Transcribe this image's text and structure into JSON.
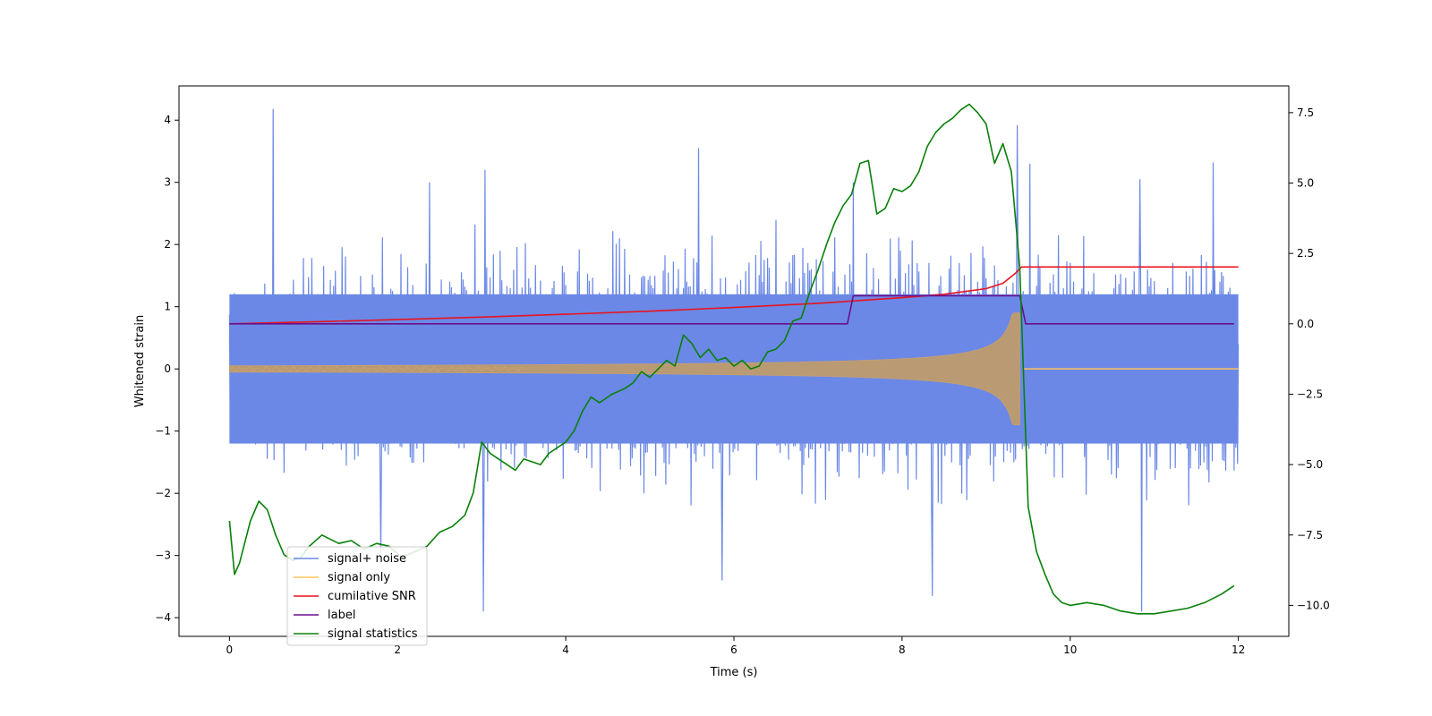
{
  "chart_data": {
    "type": "line",
    "title": "",
    "xlabel": "Time (s)",
    "ylabel": "Whitened strain",
    "ylabel_right": "",
    "xlim": [
      -0.6,
      12.6
    ],
    "ylim": [
      -4.3,
      4.55
    ],
    "ylim_right": [
      -11.1,
      8.45
    ],
    "x_ticks": [
      0,
      2,
      4,
      6,
      8,
      10,
      12
    ],
    "x_tick_labels": [
      "0",
      "2",
      "4",
      "6",
      "8",
      "10",
      "12"
    ],
    "y_ticks": [
      -4,
      -3,
      -2,
      -1,
      0,
      1,
      2,
      3,
      4
    ],
    "y_tick_labels": [
      "−4",
      "−3",
      "−2",
      "−1",
      "0",
      "1",
      "2",
      "3",
      "4"
    ],
    "y_right_ticks": [
      -10,
      -7.5,
      -5,
      -2.5,
      0,
      2.5,
      5,
      7.5
    ],
    "y_right_tick_labels": [
      "−10.0",
      "−7.5",
      "−5.0",
      "−2.5",
      "0.0",
      "2.5",
      "5.0",
      "7.5"
    ],
    "legend_position": "lower-left",
    "series": [
      {
        "name": "signal+ noise",
        "color": "#6b88e6",
        "axis": "left",
        "style": "noise band",
        "sample_rate_hz": 100,
        "x_range": [
          0,
          12
        ],
        "typical_range": [
          -1.2,
          1.2
        ],
        "envelope": [
          {
            "x": 0,
            "upper": 1.5,
            "lower": -1.6
          },
          {
            "x": 2,
            "upper": 2.4,
            "lower": -2.0
          },
          {
            "x": 4,
            "upper": 2.5,
            "lower": -2.2
          },
          {
            "x": 6,
            "upper": 2.6,
            "lower": -2.3
          },
          {
            "x": 8,
            "upper": 2.6,
            "lower": -2.4
          },
          {
            "x": 9.4,
            "upper": 2.4,
            "lower": -2.3
          },
          {
            "x": 12,
            "upper": 2.3,
            "lower": -2.2
          }
        ],
        "spikes": [
          {
            "x": 0.52,
            "y": 4.18
          },
          {
            "x": 3.02,
            "y": -3.9
          },
          {
            "x": 3.04,
            "y": 3.2
          },
          {
            "x": 5.58,
            "y": 3.55
          },
          {
            "x": 9.37,
            "y": 3.92
          },
          {
            "x": 9.52,
            "y": 3.3
          },
          {
            "x": 10.85,
            "y": -3.9
          },
          {
            "x": 10.83,
            "y": 3.05
          },
          {
            "x": 11.7,
            "y": 3.32
          },
          {
            "x": 8.36,
            "y": -3.65
          },
          {
            "x": 5.86,
            "y": -3.4
          },
          {
            "x": 1.8,
            "y": -3.0
          },
          {
            "x": 7.42,
            "y": 3.0
          },
          {
            "x": 2.38,
            "y": 3.0
          }
        ]
      },
      {
        "name": "signal only",
        "color": "#ffc55c",
        "axis": "left",
        "style": "chirp",
        "chirp": {
          "start": 0,
          "end": 9.4,
          "start_amplitude": 0.05,
          "end_amplitude": 0.9,
          "after_end": 0
        }
      },
      {
        "name": "cumilative SNR",
        "color": "#e8141e",
        "axis": "right",
        "x": [
          0,
          1,
          2,
          3,
          4,
          5,
          6,
          7,
          8,
          8.5,
          9,
          9.2,
          9.35,
          9.42,
          12
        ],
        "y": [
          0.0,
          0.07,
          0.15,
          0.24,
          0.34,
          0.45,
          0.58,
          0.73,
          0.93,
          1.05,
          1.25,
          1.44,
          1.8,
          2.02,
          2.02
        ]
      },
      {
        "name": "label",
        "color": "#6a0f8c",
        "axis": "right",
        "x": [
          0,
          7.35,
          7.42,
          9.4,
          9.47,
          11.95
        ],
        "y": [
          0,
          0,
          1,
          1,
          0,
          0
        ]
      },
      {
        "name": "signal statistics",
        "color": "#0a800a",
        "axis": "right",
        "x": [
          0,
          0.06,
          0.12,
          0.25,
          0.35,
          0.45,
          0.55,
          0.65,
          0.75,
          0.85,
          0.95,
          1.1,
          1.3,
          1.45,
          1.6,
          1.75,
          1.9,
          2.05,
          2.2,
          2.35,
          2.5,
          2.65,
          2.8,
          2.9,
          3.0,
          3.1,
          3.2,
          3.3,
          3.4,
          3.5,
          3.6,
          3.7,
          3.8,
          3.9,
          4.0,
          4.1,
          4.2,
          4.3,
          4.4,
          4.55,
          4.7,
          4.8,
          4.9,
          5.0,
          5.1,
          5.2,
          5.3,
          5.4,
          5.5,
          5.6,
          5.7,
          5.8,
          5.9,
          6.0,
          6.1,
          6.2,
          6.3,
          6.4,
          6.5,
          6.6,
          6.7,
          6.8,
          6.9,
          7.0,
          7.1,
          7.2,
          7.3,
          7.4,
          7.5,
          7.6,
          7.7,
          7.8,
          7.9,
          8.0,
          8.1,
          8.2,
          8.3,
          8.4,
          8.5,
          8.6,
          8.7,
          8.8,
          8.9,
          9.0,
          9.1,
          9.2,
          9.3,
          9.4,
          9.5,
          9.6,
          9.7,
          9.8,
          9.9,
          10.0,
          10.2,
          10.4,
          10.6,
          10.8,
          11.0,
          11.2,
          11.4,
          11.6,
          11.8,
          11.95
        ],
        "y": [
          -7.0,
          -8.9,
          -8.5,
          -7.0,
          -6.3,
          -6.6,
          -7.5,
          -8.2,
          -8.4,
          -8.3,
          -7.9,
          -7.5,
          -7.8,
          -7.7,
          -8.0,
          -7.8,
          -7.9,
          -8.3,
          -8.1,
          -7.9,
          -7.4,
          -7.2,
          -6.8,
          -6.0,
          -4.2,
          -4.6,
          -4.8,
          -5.0,
          -5.2,
          -4.8,
          -4.9,
          -5.0,
          -4.6,
          -4.4,
          -4.2,
          -3.8,
          -3.1,
          -2.6,
          -2.8,
          -2.5,
          -2.3,
          -2.1,
          -1.7,
          -1.9,
          -1.6,
          -1.3,
          -1.5,
          -0.4,
          -0.7,
          -1.2,
          -0.9,
          -1.3,
          -1.2,
          -1.5,
          -1.3,
          -1.6,
          -1.5,
          -1.0,
          -0.9,
          -0.6,
          0.1,
          0.2,
          1.1,
          1.9,
          2.8,
          3.6,
          4.2,
          4.6,
          5.7,
          5.8,
          3.9,
          4.1,
          4.8,
          4.7,
          4.9,
          5.4,
          6.3,
          6.8,
          7.1,
          7.3,
          7.6,
          7.8,
          7.5,
          7.1,
          5.7,
          6.4,
          5.4,
          2.0,
          -6.5,
          -8.1,
          -8.9,
          -9.6,
          -9.9,
          -10.0,
          -9.9,
          -10.0,
          -10.2,
          -10.3,
          -10.3,
          -10.2,
          -10.1,
          -9.9,
          -9.6,
          -9.3
        ]
      }
    ]
  }
}
